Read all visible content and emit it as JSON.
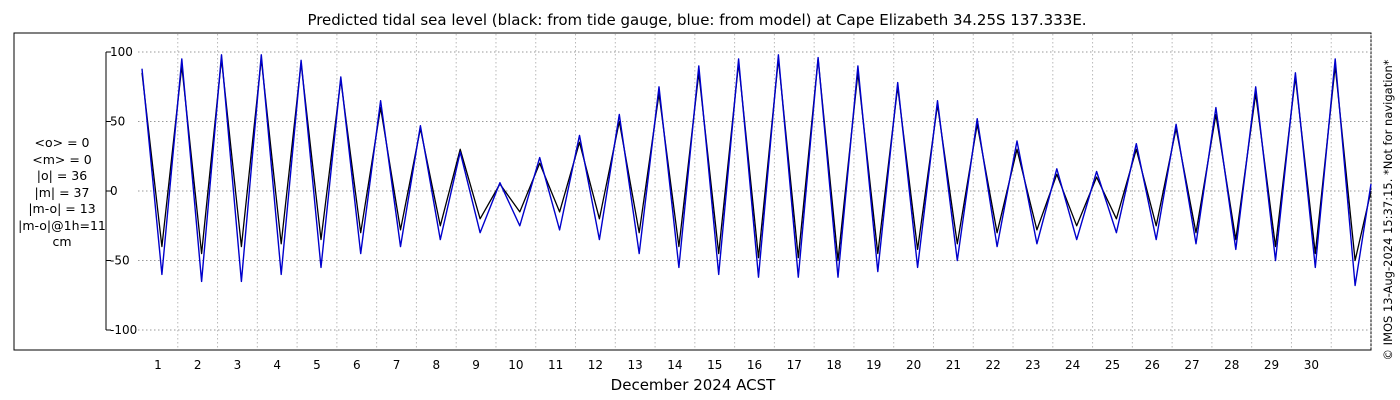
{
  "chart_data": {
    "type": "line",
    "title": "Predicted tidal sea level (black: from tide gauge, blue: from model) at Cape Elizabeth 34.25S 137.333E.",
    "xlabel": "December 2024 ACST",
    "ylabel": "",
    "xlim": [
      0,
      31
    ],
    "ylim": [
      -100,
      100
    ],
    "y_ticks": [
      "100",
      "50",
      "0",
      "-50",
      "-100"
    ],
    "x_ticks": [
      "1",
      "2",
      "3",
      "4",
      "5",
      "6",
      "7",
      "8",
      "9",
      "10",
      "11",
      "12",
      "13",
      "14",
      "15",
      "16",
      "17",
      "18",
      "19",
      "20",
      "21",
      "22",
      "23",
      "24",
      "25",
      "26",
      "27",
      "28",
      "29",
      "30"
    ],
    "grid": true,
    "colors": {
      "gauge": "#000000",
      "model": "#0000cc",
      "grid": "#9a9a9a"
    },
    "series": [
      {
        "name": "from tide gauge",
        "color": "#000000",
        "x": [
          0.1,
          0.6,
          1.1,
          1.6,
          2.1,
          2.6,
          3.1,
          3.6,
          4.1,
          4.6,
          5.1,
          5.6,
          6.1,
          6.6,
          7.1,
          7.6,
          8.1,
          8.6,
          9.1,
          9.6,
          10.1,
          10.6,
          11.1,
          11.6,
          12.1,
          12.6,
          13.1,
          13.6,
          14.1,
          14.6,
          15.1,
          15.6,
          16.1,
          16.6,
          17.1,
          17.6,
          18.1,
          18.6,
          19.1,
          19.6,
          20.1,
          20.6,
          21.1,
          21.6,
          22.1,
          22.6,
          23.1,
          23.6,
          24.1,
          24.6,
          25.1,
          25.6,
          26.1,
          26.6,
          27.1,
          27.6,
          28.1,
          28.6,
          29.1,
          29.6,
          30.1,
          30.6,
          31.0
        ],
        "values": [
          85,
          -40,
          90,
          -45,
          95,
          -40,
          95,
          -38,
          92,
          -35,
          80,
          -30,
          60,
          -28,
          45,
          -25,
          30,
          -20,
          5,
          -15,
          20,
          -15,
          35,
          -20,
          50,
          -30,
          70,
          -40,
          85,
          -45,
          92,
          -48,
          95,
          -48,
          95,
          -50,
          85,
          -45,
          75,
          -42,
          62,
          -38,
          48,
          -30,
          30,
          -28,
          12,
          -25,
          10,
          -20,
          30,
          -25,
          45,
          -30,
          55,
          -35,
          70,
          -40,
          82,
          -45,
          90,
          -50,
          0
        ]
      },
      {
        "name": "from model",
        "color": "#0000cc",
        "x": [
          0.1,
          0.6,
          1.1,
          1.6,
          2.1,
          2.6,
          3.1,
          3.6,
          4.1,
          4.6,
          5.1,
          5.6,
          6.1,
          6.6,
          7.1,
          7.6,
          8.1,
          8.6,
          9.1,
          9.6,
          10.1,
          10.6,
          11.1,
          11.6,
          12.1,
          12.6,
          13.1,
          13.6,
          14.1,
          14.6,
          15.1,
          15.6,
          16.1,
          16.6,
          17.1,
          17.6,
          18.1,
          18.6,
          19.1,
          19.6,
          20.1,
          20.6,
          21.1,
          21.6,
          22.1,
          22.6,
          23.1,
          23.6,
          24.1,
          24.6,
          25.1,
          25.6,
          26.1,
          26.6,
          27.1,
          27.6,
          28.1,
          28.6,
          29.1,
          29.6,
          30.1,
          30.6,
          31.0
        ],
        "values": [
          88,
          -60,
          95,
          -65,
          98,
          -65,
          98,
          -60,
          94,
          -55,
          82,
          -45,
          65,
          -40,
          47,
          -35,
          28,
          -30,
          6,
          -25,
          24,
          -28,
          40,
          -35,
          55,
          -45,
          75,
          -55,
          90,
          -60,
          95,
          -62,
          98,
          -62,
          96,
          -62,
          90,
          -58,
          78,
          -55,
          65,
          -50,
          52,
          -40,
          36,
          -38,
          16,
          -35,
          14,
          -30,
          34,
          -35,
          48,
          -38,
          60,
          -42,
          75,
          -50,
          85,
          -55,
          95,
          -68,
          5
        ]
      }
    ],
    "stats_lines": [
      "<o> = 0",
      "<m> = 0",
      "|o| = 36",
      "|m| = 37",
      "|m-o| = 13",
      "|m-o|@1h=11",
      "cm"
    ],
    "side_note": "© IMOS 13-Aug-2024 15:37:15. *Not for navigation*"
  }
}
